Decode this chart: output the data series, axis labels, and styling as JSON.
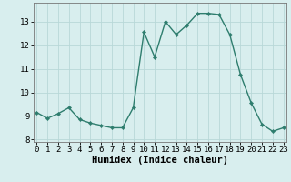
{
  "x": [
    0,
    1,
    2,
    3,
    4,
    5,
    6,
    7,
    8,
    9,
    10,
    11,
    12,
    13,
    14,
    15,
    16,
    17,
    18,
    19,
    20,
    21,
    22,
    23
  ],
  "y": [
    9.15,
    8.9,
    9.1,
    9.35,
    8.85,
    8.7,
    8.6,
    8.5,
    8.5,
    9.35,
    12.55,
    11.5,
    13.0,
    12.45,
    12.85,
    13.35,
    13.35,
    13.3,
    12.45,
    10.75,
    9.55,
    8.65,
    8.35,
    8.5
  ],
  "line_color": "#2e7d6e",
  "marker": "D",
  "markersize": 2.2,
  "linewidth": 1.0,
  "bg_color": "#d8eeee",
  "grid_color": "#b8d8d8",
  "xlabel": "Humidex (Indice chaleur)",
  "xlabel_fontsize": 7.5,
  "tick_fontsize": 6.5,
  "ylim": [
    7.9,
    13.8
  ],
  "yticks": [
    8,
    9,
    10,
    11,
    12,
    13
  ],
  "xticks": [
    0,
    1,
    2,
    3,
    4,
    5,
    6,
    7,
    8,
    9,
    10,
    11,
    12,
    13,
    14,
    15,
    16,
    17,
    18,
    19,
    20,
    21,
    22,
    23
  ],
  "xlim": [
    -0.3,
    23.3
  ]
}
